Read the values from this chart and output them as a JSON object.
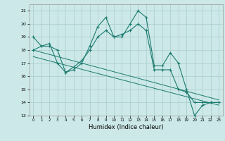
{
  "title": "",
  "xlabel": "Humidex (Indice chaleur)",
  "background_color": "#cce8e8",
  "grid_color": "#aacccc",
  "line_color": "#1a7a6e",
  "xlim": [
    -0.5,
    23.5
  ],
  "ylim": [
    13,
    21.5
  ],
  "yticks": [
    13,
    14,
    15,
    16,
    17,
    18,
    19,
    20,
    21
  ],
  "xticks": [
    0,
    1,
    2,
    3,
    4,
    5,
    6,
    7,
    8,
    9,
    10,
    11,
    12,
    13,
    14,
    15,
    16,
    17,
    18,
    19,
    20,
    21,
    22,
    23
  ],
  "lines": [
    {
      "x": [
        0,
        1,
        2,
        3,
        4,
        5,
        6,
        7,
        8,
        9,
        10,
        11,
        12,
        13,
        14,
        15,
        16,
        17,
        18,
        19,
        20,
        21,
        22,
        23
      ],
      "y": [
        19.0,
        18.3,
        18.3,
        18.0,
        16.3,
        16.5,
        17.0,
        18.3,
        19.8,
        20.5,
        19.0,
        19.0,
        20.0,
        21.0,
        20.5,
        16.8,
        16.8,
        17.8,
        17.0,
        15.0,
        13.0,
        13.8,
        14.0,
        14.0
      ],
      "style": "line_marker"
    },
    {
      "x": [
        0,
        1,
        2,
        3,
        4,
        5,
        6,
        7,
        8,
        9,
        10,
        11,
        12,
        13,
        14,
        15,
        16,
        17,
        18,
        19,
        20,
        21,
        22,
        23
      ],
      "y": [
        18.0,
        18.3,
        18.5,
        17.0,
        16.3,
        16.7,
        17.2,
        18.0,
        19.0,
        19.5,
        19.0,
        19.2,
        19.5,
        20.0,
        19.5,
        16.5,
        16.5,
        16.5,
        15.0,
        14.8,
        14.0,
        14.0,
        14.0,
        14.0
      ],
      "style": "line_marker"
    },
    {
      "x": [
        0,
        23
      ],
      "y": [
        18.0,
        14.2
      ],
      "style": "line"
    },
    {
      "x": [
        0,
        23
      ],
      "y": [
        17.5,
        13.8
      ],
      "style": "line"
    }
  ]
}
